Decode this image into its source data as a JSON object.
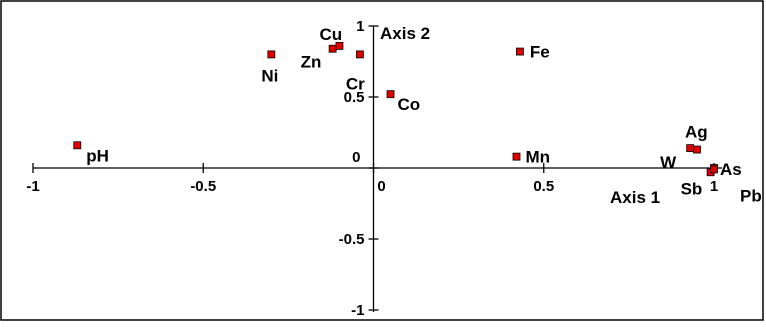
{
  "chart_data": {
    "type": "scatter",
    "title": "",
    "xlabel": "Axis 1",
    "ylabel": "Axis 2",
    "xlim": [
      -1,
      1
    ],
    "ylim": [
      -1,
      1
    ],
    "x_ticks": [
      "-1",
      "-0.5",
      "0",
      "0.5",
      "1"
    ],
    "y_ticks": [
      "1",
      "0.5",
      "0",
      "-0.5",
      "-1"
    ],
    "grid": false,
    "legend": "none",
    "marker_color": "#e00000",
    "points": [
      {
        "label": "pH",
        "x": -0.87,
        "y": 0.16
      },
      {
        "label": "Ni",
        "x": -0.3,
        "y": 0.8
      },
      {
        "label": "Zn",
        "x": -0.12,
        "y": 0.84
      },
      {
        "label": "Cu",
        "x": -0.1,
        "y": 0.86
      },
      {
        "label": "Cr",
        "x": -0.04,
        "y": 0.8
      },
      {
        "label": "Co",
        "x": 0.05,
        "y": 0.52
      },
      {
        "label": "Fe",
        "x": 0.43,
        "y": 0.82
      },
      {
        "label": "Mn",
        "x": 0.42,
        "y": 0.08
      },
      {
        "label": "Ag",
        "x": 0.95,
        "y": 0.13
      },
      {
        "label": "W",
        "x": 0.93,
        "y": 0.14
      },
      {
        "label": "As",
        "x": 1.0,
        "y": 0.0
      },
      {
        "label": "Sb",
        "x": 0.99,
        "y": -0.03
      },
      {
        "label": "Pb",
        "x": 1.0,
        "y": -0.01
      }
    ]
  }
}
